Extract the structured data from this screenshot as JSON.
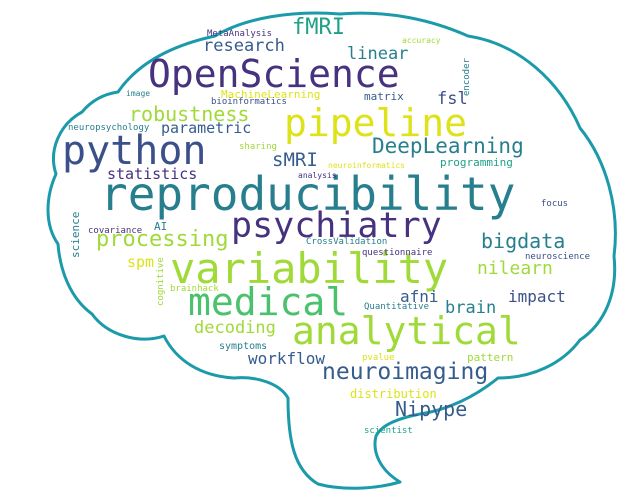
{
  "palette": {
    "outline": "#1b9aaa",
    "purple": "#46327e",
    "indigo": "#3b4f8a",
    "blue": "#365c8d",
    "teal": "#277f8e",
    "tealgreen": "#1fa187",
    "green": "#4ac16d",
    "lime": "#a0da39",
    "yellow": "#dde318"
  },
  "words": [
    {
      "text": "reproducibility",
      "color": "teal"
    },
    {
      "text": "variability",
      "color": "lime"
    },
    {
      "text": "OpenScience",
      "color": "purple"
    },
    {
      "text": "pipeline",
      "color": "yellow"
    },
    {
      "text": "python",
      "color": "indigo"
    },
    {
      "text": "analytical",
      "color": "lime"
    },
    {
      "text": "medical",
      "color": "green"
    },
    {
      "text": "psychiatry",
      "color": "purple"
    },
    {
      "text": "neuroimaging",
      "color": "blue"
    },
    {
      "text": "DeepLearning",
      "color": "teal"
    },
    {
      "text": "processing",
      "color": "lime"
    },
    {
      "text": "robustness",
      "color": "lime"
    },
    {
      "text": "Nipype",
      "color": "blue"
    },
    {
      "text": "bigdata",
      "color": "teal"
    },
    {
      "text": "fMRI",
      "color": "tealgreen"
    },
    {
      "text": "sMRI",
      "color": "blue"
    },
    {
      "text": "research",
      "color": "blue"
    },
    {
      "text": "nilearn",
      "color": "lime"
    },
    {
      "text": "decoding",
      "color": "lime"
    },
    {
      "text": "workflow",
      "color": "blue"
    },
    {
      "text": "statistics",
      "color": "purple"
    },
    {
      "text": "parametric",
      "color": "blue"
    },
    {
      "text": "linear",
      "color": "teal"
    },
    {
      "text": "brain",
      "color": "teal"
    },
    {
      "text": "impact",
      "color": "indigo"
    },
    {
      "text": "afni",
      "color": "blue"
    },
    {
      "text": "fsl",
      "color": "indigo"
    },
    {
      "text": "spm",
      "color": "yellow"
    },
    {
      "text": "programming",
      "color": "tealgreen"
    },
    {
      "text": "symptoms",
      "color": "teal"
    },
    {
      "text": "distribution",
      "color": "yellow"
    },
    {
      "text": "pattern",
      "color": "lime"
    },
    {
      "text": "MachineLearning",
      "color": "yellow"
    },
    {
      "text": "matrix",
      "color": "blue"
    },
    {
      "text": "AI",
      "color": "teal"
    },
    {
      "text": "MetaAnalysis",
      "color": "purple"
    },
    {
      "text": "accuracy",
      "color": "lime"
    },
    {
      "text": "bioinformatics",
      "color": "indigo"
    },
    {
      "text": "neuroinformatics",
      "color": "yellow"
    },
    {
      "text": "analysis",
      "color": "purple"
    },
    {
      "text": "neuropsychology",
      "color": "teal"
    },
    {
      "text": "sharing",
      "color": "lime"
    },
    {
      "text": "image",
      "color": "teal"
    },
    {
      "text": "covariance",
      "color": "purple"
    },
    {
      "text": "CrossValidation",
      "color": "teal"
    },
    {
      "text": "neuroscience",
      "color": "indigo"
    },
    {
      "text": "focus",
      "color": "indigo"
    },
    {
      "text": "questionnaire",
      "color": "purple"
    },
    {
      "text": "Quantitative",
      "color": "teal"
    },
    {
      "text": "pvalue",
      "color": "yellow"
    },
    {
      "text": "scientist",
      "color": "tealgreen"
    },
    {
      "text": "brainhack",
      "color": "lime"
    },
    {
      "text": "science",
      "color": "teal"
    },
    {
      "text": "cognitive",
      "color": "lime"
    },
    {
      "text": "encoder",
      "color": "teal"
    }
  ]
}
